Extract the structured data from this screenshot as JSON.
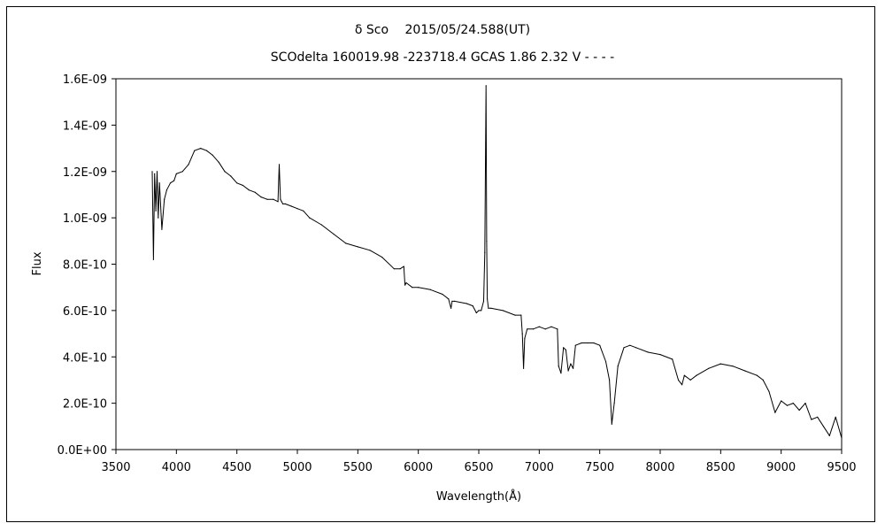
{
  "chart_data": {
    "type": "line",
    "title": "δ Sco　 2015/05/24.588(UT)",
    "subtitle": "SCOdelta 160019.98 -223718.4 GCAS 1.86 2.32 V - - - -",
    "xlabel": "Wavelength(Å)",
    "ylabel": "Flux",
    "xlim": [
      3500,
      9500
    ],
    "ylim": [
      0,
      1.6e-09
    ],
    "xticks": [
      "3500",
      "4000",
      "4500",
      "5000",
      "5500",
      "6000",
      "6500",
      "7000",
      "7500",
      "8000",
      "8500",
      "9000",
      "9500"
    ],
    "yticks": [
      "0.0E+00",
      "2.0E-10",
      "4.0E-10",
      "6.0E-10",
      "8.0E-10",
      "1.0E-09",
      "1.2E-09",
      "1.4E-09",
      "1.6E-09"
    ],
    "grid": false,
    "legend": "none",
    "series": [
      {
        "color": "#000000",
        "x": [
          3800,
          3810,
          3820,
          3830,
          3840,
          3850,
          3860,
          3880,
          3900,
          3920,
          3950,
          3980,
          4000,
          4050,
          4100,
          4150,
          4200,
          4250,
          4300,
          4350,
          4400,
          4450,
          4500,
          4550,
          4600,
          4650,
          4700,
          4750,
          4800,
          4840,
          4850,
          4860,
          4870,
          4880,
          4900,
          4950,
          5000,
          5050,
          5100,
          5200,
          5300,
          5400,
          5500,
          5600,
          5700,
          5800,
          5850,
          5880,
          5890,
          5900,
          5950,
          6000,
          6100,
          6200,
          6250,
          6270,
          6280,
          6300,
          6400,
          6450,
          6480,
          6500,
          6520,
          6540,
          6550,
          6560,
          6565,
          6570,
          6580,
          6600,
          6700,
          6800,
          6850,
          6860,
          6870,
          6880,
          6900,
          6950,
          7000,
          7050,
          7100,
          7150,
          7160,
          7180,
          7200,
          7220,
          7240,
          7260,
          7280,
          7300,
          7350,
          7400,
          7450,
          7500,
          7550,
          7580,
          7600,
          7620,
          7650,
          7700,
          7750,
          7800,
          7900,
          8000,
          8100,
          8150,
          8180,
          8200,
          8250,
          8300,
          8400,
          8500,
          8600,
          8700,
          8800,
          8850,
          8900,
          8950,
          9000,
          9050,
          9100,
          9150,
          9200,
          9250,
          9300,
          9350,
          9400,
          9450,
          9500
        ],
        "y": [
          1.2e-09,
          8.2e-10,
          1.19e-09,
          1.03e-09,
          1.2e-09,
          1e-09,
          1.15e-09,
          9.5e-10,
          1.08e-09,
          1.12e-09,
          1.15e-09,
          1.16e-09,
          1.19e-09,
          1.2e-09,
          1.23e-09,
          1.29e-09,
          1.3e-09,
          1.29e-09,
          1.27e-09,
          1.24e-09,
          1.2e-09,
          1.18e-09,
          1.15e-09,
          1.14e-09,
          1.12e-09,
          1.11e-09,
          1.09e-09,
          1.08e-09,
          1.08e-09,
          1.07e-09,
          1.23e-09,
          1.08e-09,
          1.07e-09,
          1.06e-09,
          1.06e-09,
          1.05e-09,
          1.04e-09,
          1.03e-09,
          1e-09,
          9.7e-10,
          9.3e-10,
          8.9e-10,
          8.75e-10,
          8.6e-10,
          8.3e-10,
          7.8e-10,
          7.8e-10,
          7.9e-10,
          7.1e-10,
          7.2e-10,
          7e-10,
          7e-10,
          6.9e-10,
          6.7e-10,
          6.5e-10,
          6.1e-10,
          6.4e-10,
          6.4e-10,
          6.3e-10,
          6.2e-10,
          5.9e-10,
          6e-10,
          6e-10,
          6.4e-10,
          8.5e-10,
          1.57e-09,
          9e-10,
          6.5e-10,
          6.1e-10,
          6.1e-10,
          6e-10,
          5.8e-10,
          5.8e-10,
          5e-10,
          3.5e-10,
          4.8e-10,
          5.2e-10,
          5.2e-10,
          5.3e-10,
          5.2e-10,
          5.3e-10,
          5.2e-10,
          3.6e-10,
          3.3e-10,
          4.4e-10,
          4.3e-10,
          3.4e-10,
          3.7e-10,
          3.5e-10,
          4.5e-10,
          4.6e-10,
          4.6e-10,
          4.6e-10,
          4.5e-10,
          3.8e-10,
          3e-10,
          1.1e-10,
          2e-10,
          3.6e-10,
          4.4e-10,
          4.5e-10,
          4.4e-10,
          4.2e-10,
          4.1e-10,
          3.9e-10,
          3e-10,
          2.8e-10,
          3.2e-10,
          3e-10,
          3.2e-10,
          3.5e-10,
          3.7e-10,
          3.6e-10,
          3.4e-10,
          3.2e-10,
          3e-10,
          2.5e-10,
          1.6e-10,
          2.1e-10,
          1.9e-10,
          2e-10,
          1.7e-10,
          2e-10,
          1.3e-10,
          1.4e-10,
          1e-10,
          6e-11,
          1.4e-10,
          5e-11
        ]
      }
    ]
  }
}
